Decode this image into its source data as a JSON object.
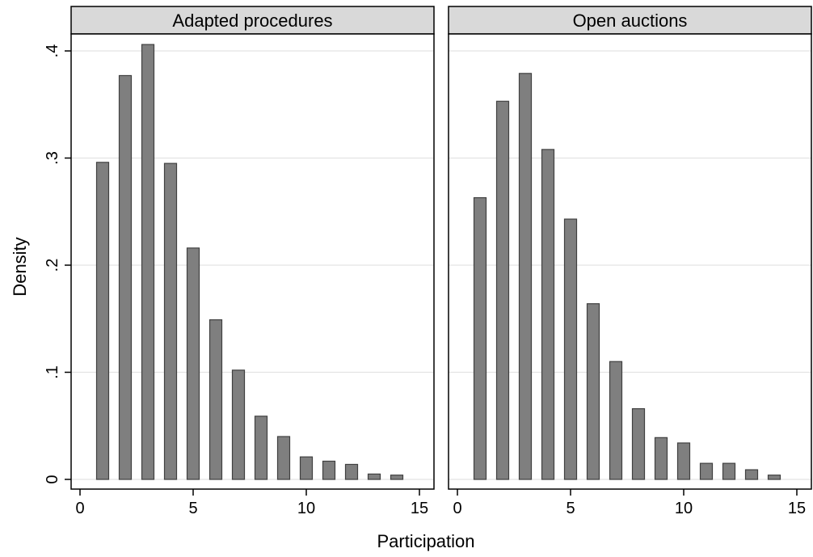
{
  "chart_data": {
    "type": "bar",
    "title": "",
    "xlabel": "Participation",
    "ylabel": "Density",
    "xlim": [
      0,
      15
    ],
    "ylim": [
      0,
      0.4
    ],
    "x_ticks": [
      0,
      5,
      10,
      15
    ],
    "x_tick_labels": [
      "0",
      "5",
      "10",
      "15"
    ],
    "y_ticks": [
      0,
      0.1,
      0.2,
      0.3,
      0.4
    ],
    "y_tick_labels": [
      "0",
      ".1",
      ".2",
      ".3",
      ".4"
    ],
    "grid": true,
    "bar_color": "#7f7f7f",
    "panels": [
      {
        "title": "Adapted procedures",
        "x": [
          1,
          2,
          3,
          4,
          5,
          6,
          7,
          8,
          9,
          10,
          11,
          12,
          13,
          14
        ],
        "values": [
          0.296,
          0.377,
          0.406,
          0.295,
          0.216,
          0.149,
          0.102,
          0.059,
          0.04,
          0.021,
          0.017,
          0.014,
          0.005,
          0.004
        ]
      },
      {
        "title": "Open auctions",
        "x": [
          1,
          2,
          3,
          4,
          5,
          6,
          7,
          8,
          9,
          10,
          11,
          12,
          13,
          14
        ],
        "values": [
          0.263,
          0.353,
          0.379,
          0.308,
          0.243,
          0.164,
          0.11,
          0.066,
          0.039,
          0.034,
          0.015,
          0.015,
          0.009,
          0.004
        ]
      }
    ]
  }
}
